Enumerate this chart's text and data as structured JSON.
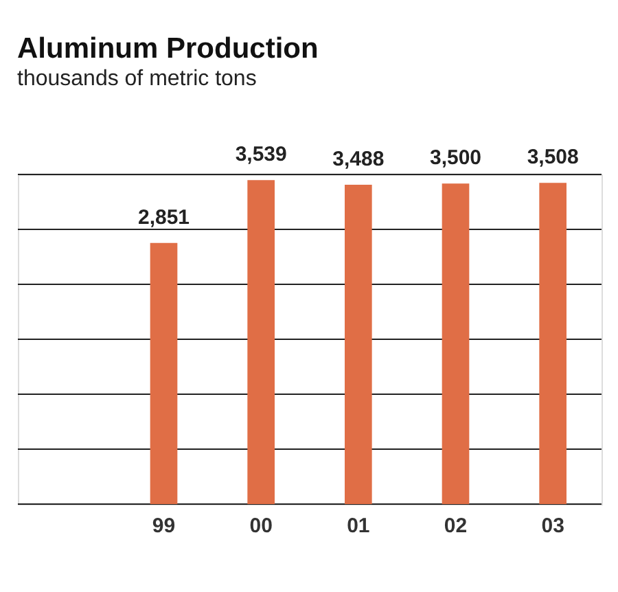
{
  "chart_data": {
    "type": "bar",
    "title": "Aluminum Production",
    "subtitle": "thousands of metric tons",
    "categories": [
      null,
      "99",
      "00",
      "01",
      "02",
      "03"
    ],
    "values": [
      null,
      2851,
      3539,
      3488,
      3500,
      3508
    ],
    "color": "#e06e46",
    "data_labels": true,
    "value_labels": [
      null,
      "2,851",
      "3,539",
      "3,488",
      "3,500",
      "3,508"
    ],
    "ylim": [
      0,
      3600
    ],
    "yticks": [
      {
        "value": 0,
        "label": null
      },
      {
        "value": 600,
        "label": null
      },
      {
        "value": 1200,
        "label": null
      },
      {
        "value": 1800,
        "label": null
      },
      {
        "value": 2400,
        "label": null
      },
      {
        "value": 3000,
        "label": null
      },
      {
        "value": 3600,
        "label": null
      }
    ],
    "grid": "y",
    "tick_labels": "x"
  }
}
